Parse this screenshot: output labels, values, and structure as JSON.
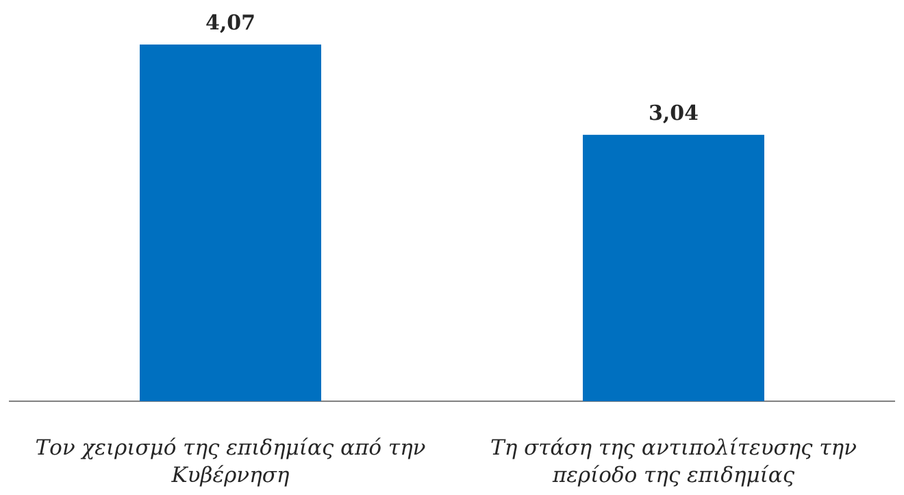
{
  "chart_data": {
    "type": "bar",
    "categories": [
      [
        "Τον χειρισμό της επιδημίας από την",
        "Κυβέρνηση"
      ],
      [
        "Τη στάση της αντιπολίτευσης την",
        "περίοδο της επιδημίας"
      ]
    ],
    "values": [
      4.07,
      3.04
    ],
    "value_labels": [
      "4,07",
      "3,04"
    ],
    "ylim": [
      0,
      4.5
    ],
    "grid": false,
    "legend": "none",
    "bar_color": "#0070C0",
    "axis_color": "#808080"
  }
}
